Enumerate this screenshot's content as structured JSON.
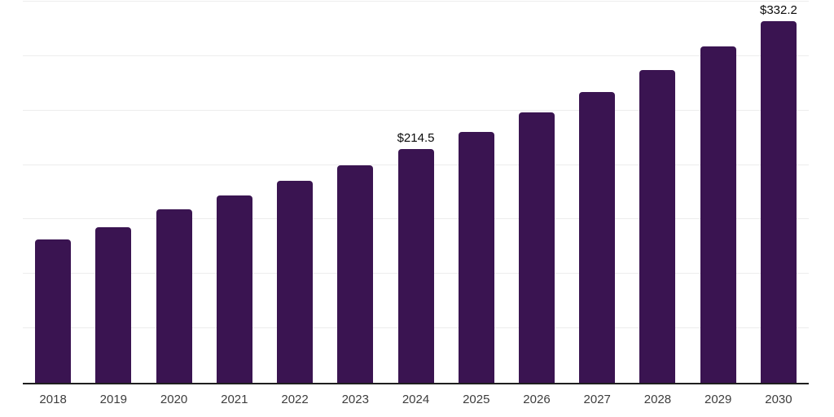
{
  "chart_data": {
    "type": "bar",
    "title": "",
    "xlabel": "",
    "ylabel": "",
    "categories": [
      "2018",
      "2019",
      "2020",
      "2021",
      "2022",
      "2023",
      "2024",
      "2025",
      "2026",
      "2027",
      "2028",
      "2029",
      "2030"
    ],
    "values": [
      131.4,
      143.1,
      159.0,
      171.8,
      185.6,
      199.4,
      214.5,
      230.7,
      248.1,
      266.9,
      287.1,
      308.8,
      332.2
    ],
    "value_prefix": "$",
    "data_labels": {
      "2024": "$214.5",
      "2030": "$332.2"
    },
    "ylim": [
      0,
      350
    ],
    "gridline_step": 50,
    "grid": true,
    "legend": false,
    "y_axis_tick_labels_visible": false,
    "bar_color": "#3A1451",
    "background_color": "#FFFFFF",
    "gridline_color": "#EDEDED",
    "axis_line_color": "#1F1F1F",
    "label_color": "#0B0B0B",
    "tick_label_color": "#3D3D3D"
  }
}
